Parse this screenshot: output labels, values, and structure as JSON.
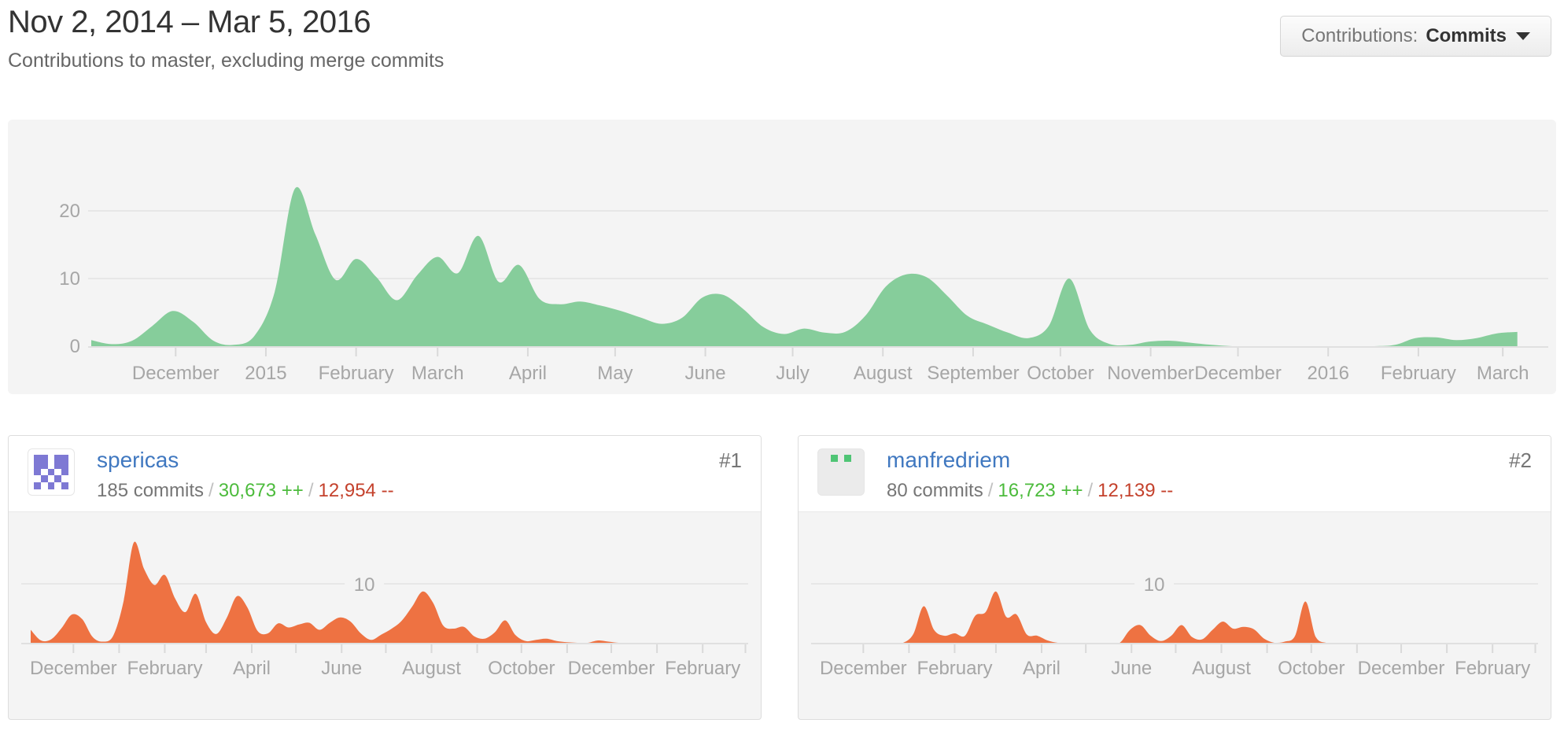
{
  "header": {
    "title": "Nov 2, 2014 – Mar 5, 2016",
    "subtitle": "Contributions to master, excluding merge commits"
  },
  "contributions_dropdown": {
    "label": "Contributions:",
    "selected": "Commits"
  },
  "colors": {
    "main_area_fill": "#86cd9b",
    "contributor_area_fill": "#ee7242",
    "panel_bg": "#f4f4f4",
    "gridline": "#e7e7e7",
    "baseline": "#e0e0e0",
    "tick": "#d9d9d9",
    "axis_label": "#a6a6a6",
    "link_blue": "#4078c0",
    "additions_green": "#4cbb3c",
    "deletions_red": "#c4412c"
  },
  "chart_data": [
    {
      "type": "area",
      "name": "all-contributors-commits-per-week",
      "title": "Commits to master per week, all contributors",
      "x_start": "Nov 2, 2014",
      "x_end": "Mar 5, 2016",
      "x_unit": "week",
      "ylim": [
        0,
        25
      ],
      "yticks": [
        0,
        10,
        20
      ],
      "grid": true,
      "month_ticks": [
        {
          "label": "December",
          "day": 29
        },
        {
          "label": "2015",
          "day": 60
        },
        {
          "label": "February",
          "day": 91
        },
        {
          "label": "March",
          "day": 119
        },
        {
          "label": "April",
          "day": 150
        },
        {
          "label": "May",
          "day": 180
        },
        {
          "label": "June",
          "day": 211
        },
        {
          "label": "July",
          "day": 241
        },
        {
          "label": "August",
          "day": 272
        },
        {
          "label": "September",
          "day": 303
        },
        {
          "label": "October",
          "day": 333
        },
        {
          "label": "November",
          "day": 364
        },
        {
          "label": "December",
          "day": 394
        },
        {
          "label": "2016",
          "day": 425
        },
        {
          "label": "February",
          "day": 456
        },
        {
          "label": "March",
          "day": 485
        }
      ],
      "values": [
        0.9,
        0.3,
        0.8,
        3,
        5.2,
        3.6,
        0.8,
        0.2,
        1.5,
        8,
        23.3,
        16.5,
        9.8,
        12.9,
        10.2,
        6.8,
        10.5,
        13.2,
        10.8,
        16.3,
        9.5,
        12,
        7,
        6.2,
        6.6,
        6,
        5.2,
        4.2,
        3.3,
        4.2,
        7.2,
        7.6,
        5.5,
        2.8,
        1.8,
        2.6,
        2,
        2.1,
        4.5,
        8.8,
        10.6,
        10.2,
        7.5,
        4.5,
        3.2,
        2,
        1.2,
        3,
        10,
        2.5,
        0.3,
        0.2,
        0.7,
        0.8,
        0.5,
        0.2,
        0,
        0,
        0,
        0,
        0,
        0,
        0,
        0,
        0.2,
        1.2,
        1.3,
        0.9,
        1.2,
        1.9,
        2.1
      ]
    },
    {
      "type": "area",
      "name": "spericas-commits-per-week",
      "title": "spericas commits per week",
      "x_start": "Nov 2, 2014",
      "x_end": "Mar 5, 2016",
      "x_unit": "week",
      "ylim": [
        0,
        20
      ],
      "yticks": [
        10
      ],
      "grid": true,
      "month_ticks": [
        {
          "day": 29
        },
        {
          "day": 60
        },
        {
          "day": 91
        },
        {
          "day": 119
        },
        {
          "day": 150
        },
        {
          "day": 180
        },
        {
          "day": 211
        },
        {
          "day": 241
        },
        {
          "day": 272
        },
        {
          "day": 303
        },
        {
          "day": 333
        },
        {
          "day": 364
        },
        {
          "day": 394
        },
        {
          "day": 425
        },
        {
          "day": 456
        },
        {
          "day": 485
        }
      ],
      "month_labels": [
        {
          "label": "December",
          "day": 29
        },
        {
          "label": "February",
          "day": 91
        },
        {
          "label": "April",
          "day": 150
        },
        {
          "label": "June",
          "day": 211
        },
        {
          "label": "August",
          "day": 272
        },
        {
          "label": "October",
          "day": 333
        },
        {
          "label": "December",
          "day": 394
        },
        {
          "label": "February",
          "day": 456
        }
      ],
      "values": [
        2.2,
        0.4,
        0.6,
        2.5,
        4.8,
        4,
        1,
        0.2,
        1.2,
        7,
        17,
        12.5,
        9.8,
        11.5,
        7.5,
        5.2,
        8.3,
        3.5,
        1.5,
        4.2,
        7.9,
        6,
        2,
        1.6,
        3.3,
        2.6,
        3.1,
        3.4,
        2.2,
        3.4,
        4.3,
        3.6,
        1.6,
        0.5,
        1.4,
        2.4,
        3.8,
        6.2,
        8.7,
        6.8,
        2.9,
        2.4,
        2.7,
        1.1,
        0.7,
        1.8,
        3.8,
        1.3,
        0.3,
        0.5,
        0.7,
        0.3,
        0.1,
        0,
        0,
        0.4,
        0.2,
        0,
        0,
        0,
        0,
        0,
        0,
        0,
        0,
        0,
        0,
        0,
        0,
        0,
        0
      ]
    },
    {
      "type": "area",
      "name": "manfredriem-commits-per-week",
      "title": "manfredriem commits per week",
      "x_start": "Nov 2, 2014",
      "x_end": "Mar 5, 2016",
      "x_unit": "week",
      "ylim": [
        0,
        20
      ],
      "yticks": [
        10
      ],
      "grid": true,
      "month_ticks": [
        {
          "day": 29
        },
        {
          "day": 60
        },
        {
          "day": 91
        },
        {
          "day": 119
        },
        {
          "day": 150
        },
        {
          "day": 180
        },
        {
          "day": 211
        },
        {
          "day": 241
        },
        {
          "day": 272
        },
        {
          "day": 303
        },
        {
          "day": 333
        },
        {
          "day": 364
        },
        {
          "day": 394
        },
        {
          "day": 425
        },
        {
          "day": 456
        },
        {
          "day": 485
        }
      ],
      "month_labels": [
        {
          "label": "December",
          "day": 29
        },
        {
          "label": "February",
          "day": 91
        },
        {
          "label": "April",
          "day": 150
        },
        {
          "label": "June",
          "day": 211
        },
        {
          "label": "August",
          "day": 272
        },
        {
          "label": "October",
          "day": 333
        },
        {
          "label": "December",
          "day": 394
        },
        {
          "label": "February",
          "day": 456
        }
      ],
      "values": [
        0,
        0,
        0,
        0,
        0,
        0,
        0,
        0,
        0,
        1.5,
        6.2,
        2.2,
        1.2,
        1.6,
        1.2,
        4.6,
        5.2,
        8.7,
        4.4,
        4.8,
        1.4,
        1.2,
        0.4,
        0,
        0,
        0,
        0,
        0,
        0,
        0,
        2.2,
        3,
        1.2,
        0.3,
        1.2,
        3,
        1,
        0.6,
        2.2,
        3.6,
        2.4,
        2.7,
        2.3,
        0.7,
        0,
        0.2,
        1.2,
        7,
        1,
        0,
        0,
        0,
        0,
        0,
        0,
        0,
        0,
        0,
        0,
        0,
        0,
        0,
        0,
        0,
        0,
        0,
        0,
        0,
        0,
        0,
        0
      ]
    }
  ],
  "contributors": [
    {
      "rank": "#1",
      "username": "spericas",
      "commits": "185 commits",
      "additions": "30,673 ++",
      "deletions": "12,954 --",
      "separator": "/",
      "avatar": {
        "icon": "identicon",
        "fg": "#7e79d4",
        "bg": "#ffffff",
        "grid": [
          [
            1,
            1,
            0,
            1,
            1
          ],
          [
            1,
            1,
            0,
            1,
            1
          ],
          [
            1,
            0,
            1,
            0,
            1
          ],
          [
            0,
            1,
            0,
            1,
            0
          ],
          [
            1,
            0,
            1,
            0,
            1
          ]
        ]
      }
    },
    {
      "rank": "#2",
      "username": "manfredriem",
      "commits": "80 commits",
      "additions": "16,723 ++",
      "deletions": "12,139 --",
      "separator": "/",
      "avatar": {
        "icon": "identicon",
        "fg": "#4fc575",
        "bg": "#ebebeb",
        "grid": [
          [
            0,
            1,
            0,
            1,
            0
          ],
          [
            0,
            0,
            0,
            0,
            0
          ],
          [
            0,
            0,
            0,
            0,
            0
          ],
          [
            0,
            0,
            0,
            0,
            0
          ],
          [
            0,
            0,
            0,
            0,
            0
          ]
        ]
      }
    }
  ]
}
